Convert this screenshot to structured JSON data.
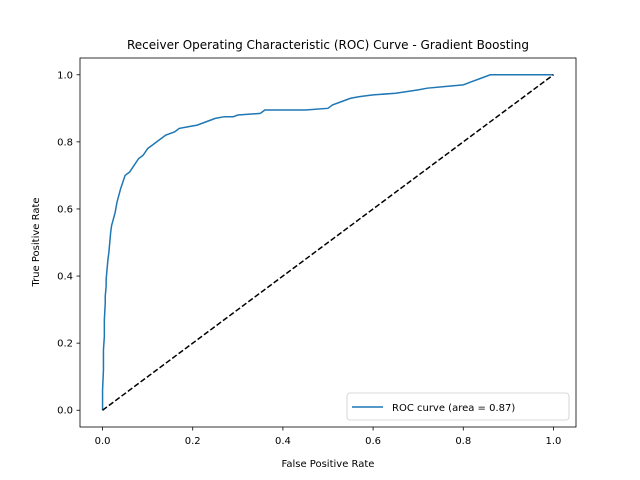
{
  "chart_data": {
    "type": "line",
    "title": "Receiver Operating Characteristic (ROC) Curve - Gradient Boosting",
    "xlabel": "False Positive Rate",
    "ylabel": "True Positive Rate",
    "xlim": [
      -0.05,
      1.05
    ],
    "ylim": [
      -0.05,
      1.05
    ],
    "grid": false,
    "legend_position": "lower-right",
    "xticks": [
      0.0,
      0.2,
      0.4,
      0.6,
      0.8,
      1.0
    ],
    "yticks": [
      0.0,
      0.2,
      0.4,
      0.6,
      0.8,
      1.0
    ],
    "xtick_labels": [
      "0.0",
      "0.2",
      "0.4",
      "0.6",
      "0.8",
      "1.0"
    ],
    "ytick_labels": [
      "0.0",
      "0.2",
      "0.4",
      "0.6",
      "0.8",
      "1.0"
    ],
    "series": [
      {
        "name": "ROC curve (area = 0.87)",
        "color": "#1f77b4",
        "style": "solid",
        "x": [
          0.0,
          0.0,
          0.002,
          0.002,
          0.004,
          0.004,
          0.006,
          0.006,
          0.008,
          0.008,
          0.01,
          0.012,
          0.014,
          0.016,
          0.018,
          0.02,
          0.024,
          0.028,
          0.032,
          0.036,
          0.04,
          0.045,
          0.05,
          0.06,
          0.07,
          0.08,
          0.09,
          0.1,
          0.11,
          0.12,
          0.14,
          0.16,
          0.17,
          0.19,
          0.21,
          0.23,
          0.25,
          0.27,
          0.29,
          0.3,
          0.35,
          0.36,
          0.4,
          0.45,
          0.5,
          0.51,
          0.53,
          0.55,
          0.57,
          0.6,
          0.65,
          0.7,
          0.72,
          0.76,
          0.8,
          0.82,
          0.84,
          0.86,
          0.9,
          0.95,
          1.0
        ],
        "y": [
          0.0,
          0.06,
          0.12,
          0.18,
          0.22,
          0.27,
          0.32,
          0.34,
          0.37,
          0.39,
          0.42,
          0.45,
          0.47,
          0.5,
          0.53,
          0.55,
          0.57,
          0.59,
          0.62,
          0.64,
          0.66,
          0.68,
          0.7,
          0.71,
          0.73,
          0.75,
          0.76,
          0.78,
          0.79,
          0.8,
          0.82,
          0.83,
          0.84,
          0.845,
          0.85,
          0.86,
          0.87,
          0.875,
          0.875,
          0.88,
          0.885,
          0.895,
          0.895,
          0.895,
          0.9,
          0.91,
          0.92,
          0.93,
          0.935,
          0.94,
          0.945,
          0.955,
          0.96,
          0.965,
          0.97,
          0.98,
          0.99,
          1.0,
          1.0,
          1.0,
          1.0
        ]
      },
      {
        "name": "",
        "color": "#000000",
        "style": "dashed",
        "x": [
          0.0,
          1.0
        ],
        "y": [
          0.0,
          1.0
        ]
      }
    ]
  }
}
